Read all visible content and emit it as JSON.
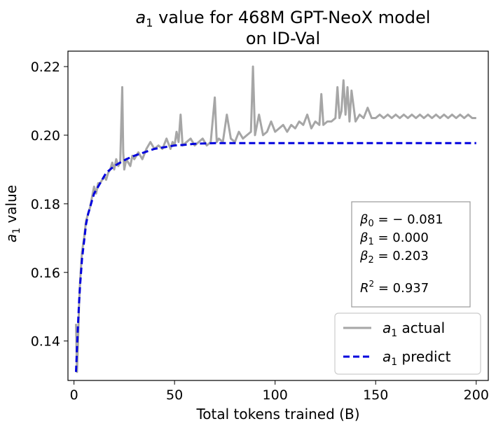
{
  "chart_data": {
    "type": "line",
    "title_line1": "a₁ value for 468M GPT-NeoX model",
    "title_line2": "on ID-Val",
    "xlabel": "Total tokens trained (B)",
    "ylabel": "a₁ value",
    "xlim": [
      -3,
      206
    ],
    "ylim": [
      0.1285,
      0.2245
    ],
    "xticks": [
      0,
      50,
      100,
      150,
      200
    ],
    "xtick_labels": [
      "0",
      "50",
      "100",
      "150",
      "200"
    ],
    "yticks": [
      0.14,
      0.16,
      0.18,
      0.2,
      0.22
    ],
    "ytick_labels": [
      "0.14",
      "0.16",
      "0.18",
      "0.20",
      "0.22"
    ],
    "grid": false,
    "series": [
      {
        "name": "a₁ actual",
        "color": "#a6a6a6",
        "style": "solid",
        "x": [
          1,
          1.5,
          2,
          2.5,
          3,
          4,
          5,
          6,
          7,
          8,
          9,
          10,
          11,
          12,
          13,
          14,
          15,
          16,
          17,
          18,
          19,
          20,
          21,
          22,
          23,
          24,
          24.5,
          25,
          26,
          27,
          28,
          29,
          30,
          32,
          34,
          36,
          38,
          40,
          42,
          44,
          46,
          48,
          49,
          50,
          51,
          52,
          53,
          54,
          56,
          58,
          60,
          62,
          64,
          66,
          68,
          70,
          71,
          72,
          74,
          76,
          78,
          80,
          82,
          84,
          86,
          88,
          89,
          90,
          92,
          94,
          96,
          98,
          100,
          102,
          104,
          106,
          108,
          110,
          112,
          114,
          116,
          118,
          120,
          122,
          123,
          124,
          126,
          128,
          130,
          131,
          132,
          133,
          134,
          135,
          136,
          137,
          138,
          140,
          142,
          144,
          146,
          148,
          150,
          152,
          154,
          156,
          158,
          160,
          162,
          164,
          166,
          168,
          170,
          172,
          174,
          176,
          178,
          180,
          182,
          184,
          186,
          188,
          190,
          192,
          194,
          196,
          198,
          200
        ],
        "y": [
          0.145,
          0.131,
          0.14,
          0.15,
          0.157,
          0.166,
          0.17,
          0.175,
          0.177,
          0.179,
          0.182,
          0.185,
          0.183,
          0.186,
          0.186,
          0.187,
          0.188,
          0.187,
          0.189,
          0.19,
          0.192,
          0.19,
          0.193,
          0.191,
          0.192,
          0.214,
          0.195,
          0.19,
          0.193,
          0.192,
          0.191,
          0.194,
          0.193,
          0.195,
          0.193,
          0.196,
          0.198,
          0.196,
          0.197,
          0.196,
          0.199,
          0.196,
          0.198,
          0.197,
          0.201,
          0.198,
          0.206,
          0.197,
          0.198,
          0.199,
          0.197,
          0.198,
          0.199,
          0.197,
          0.198,
          0.211,
          0.198,
          0.199,
          0.198,
          0.206,
          0.199,
          0.198,
          0.201,
          0.199,
          0.2,
          0.201,
          0.22,
          0.2,
          0.206,
          0.2,
          0.201,
          0.204,
          0.201,
          0.202,
          0.203,
          0.201,
          0.203,
          0.202,
          0.204,
          0.203,
          0.206,
          0.202,
          0.204,
          0.203,
          0.212,
          0.203,
          0.204,
          0.204,
          0.205,
          0.214,
          0.205,
          0.207,
          0.216,
          0.206,
          0.214,
          0.204,
          0.213,
          0.204,
          0.206,
          0.205,
          0.208,
          0.205,
          0.205,
          0.206,
          0.205,
          0.206,
          0.205,
          0.206,
          0.205,
          0.206,
          0.205,
          0.206,
          0.205,
          0.206,
          0.205,
          0.206,
          0.205,
          0.206,
          0.205,
          0.206,
          0.205,
          0.206,
          0.205,
          0.206,
          0.205,
          0.206,
          0.205,
          0.205
        ]
      },
      {
        "name": "a₁ predict",
        "color": "#0000dd",
        "style": "dashed",
        "x": [
          1,
          1.5,
          2,
          2.5,
          3,
          3.5,
          4,
          5,
          6,
          7,
          8,
          9,
          10,
          12,
          14,
          16,
          18,
          20,
          23,
          26,
          30,
          35,
          40,
          45,
          50,
          55,
          60,
          65,
          70,
          80,
          100,
          120,
          150,
          175,
          200
        ],
        "y": [
          0.131,
          0.138,
          0.145,
          0.151,
          0.156,
          0.16,
          0.164,
          0.169,
          0.174,
          0.177,
          0.179,
          0.181,
          0.183,
          0.185,
          0.187,
          0.189,
          0.19,
          0.191,
          0.192,
          0.193,
          0.194,
          0.195,
          0.196,
          0.1965,
          0.197,
          0.1972,
          0.1975,
          0.1976,
          0.1977,
          0.1977,
          0.1977,
          0.1977,
          0.1977,
          0.1977,
          0.1977
        ]
      }
    ],
    "annotation": {
      "beta0": "β₀ = − 0.081",
      "beta1": "β₁ = 0.000",
      "beta2": "β₂ = 0.203",
      "r2": "R² = 0.937"
    },
    "legend": {
      "placement": "lower right",
      "actual_label": "a₁ actual",
      "predict_label": "a₁ predict"
    }
  }
}
